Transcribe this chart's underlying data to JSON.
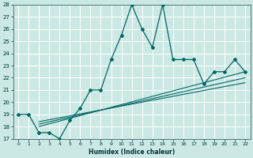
{
  "xlabel": "Humidex (Indice chaleur)",
  "xlim": [
    -0.5,
    22.5
  ],
  "ylim": [
    17,
    28
  ],
  "yticks": [
    17,
    18,
    19,
    20,
    21,
    22,
    23,
    24,
    25,
    26,
    27,
    28
  ],
  "xticks": [
    0,
    1,
    2,
    3,
    4,
    5,
    6,
    7,
    8,
    9,
    10,
    11,
    12,
    13,
    14,
    15,
    16,
    17,
    18,
    19,
    20,
    21,
    22
  ],
  "bg_color": "#cce8e4",
  "grid_color": "#ffffff",
  "line_color": "#006666",
  "main_x": [
    0,
    1,
    2,
    3,
    4,
    5,
    6,
    7,
    8,
    9,
    10,
    11,
    12,
    13,
    14,
    15,
    16,
    17,
    18,
    19,
    20,
    21,
    22
  ],
  "main_y": [
    19.0,
    19.0,
    17.5,
    17.5,
    17.0,
    18.5,
    19.5,
    21.0,
    21.0,
    23.5,
    25.5,
    28.0,
    26.0,
    24.5,
    28.0,
    23.5,
    23.5,
    23.5,
    21.5,
    22.5,
    22.5,
    23.5,
    22.5
  ],
  "reg_lines": [
    {
      "x0": 2.0,
      "y0": 18.0,
      "x1": 22.0,
      "y1": 22.5
    },
    {
      "x0": 2.0,
      "y0": 18.2,
      "x1": 22.0,
      "y1": 22.0
    },
    {
      "x0": 2.0,
      "y0": 18.4,
      "x1": 22.0,
      "y1": 21.6
    }
  ]
}
